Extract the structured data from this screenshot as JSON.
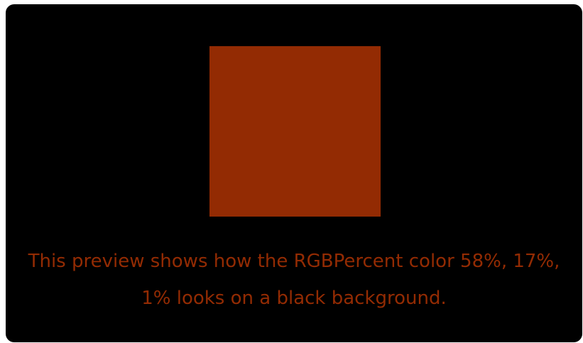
{
  "preview": {
    "background_color": "#000000",
    "swatch_color": "#932b03",
    "caption": "This preview shows how the RGBPercent color 58%, 17%, 1% looks on a black background."
  }
}
